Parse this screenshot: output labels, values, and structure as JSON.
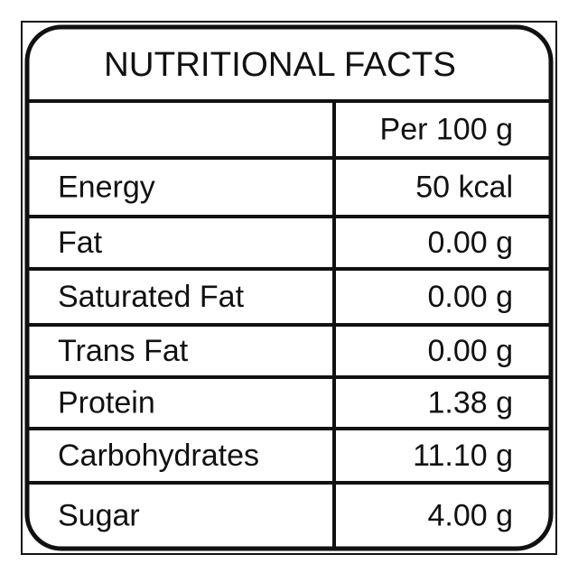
{
  "title": "NUTRITIONAL FACTS",
  "table": {
    "column": "Per 100 g",
    "rows": [
      [
        "Energy",
        "50 kcal"
      ],
      [
        "Fat",
        "0.00 g"
      ],
      [
        "Saturated Fat",
        "0.00 g"
      ],
      [
        "Trans Fat",
        "0.00 g"
      ],
      [
        "Protein",
        "1.38 g"
      ],
      [
        "Carbohydrates",
        "11.10 g"
      ],
      [
        "Sugar",
        "4.00 g"
      ]
    ]
  }
}
